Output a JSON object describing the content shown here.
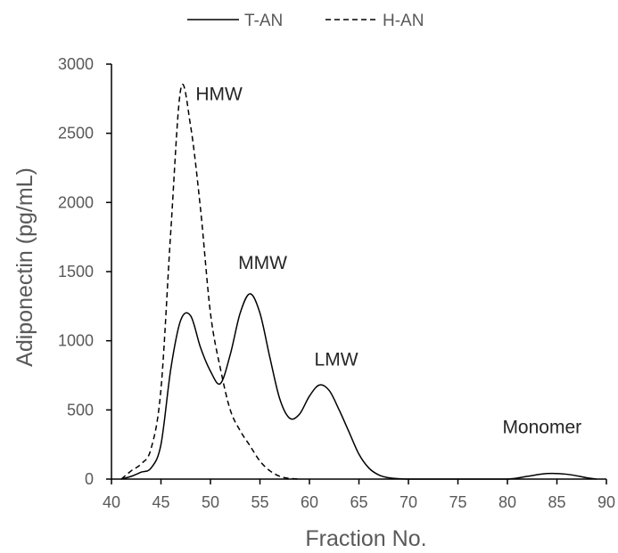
{
  "chart_data": {
    "type": "line",
    "title": "",
    "xlabel": "Fraction No.",
    "ylabel": "Adiponectin (pg/mL)",
    "xlim": [
      40,
      90
    ],
    "ylim": [
      0,
      3000
    ],
    "x_ticks": [
      40,
      45,
      50,
      55,
      60,
      65,
      70,
      75,
      80,
      85,
      90
    ],
    "y_ticks": [
      0,
      500,
      1000,
      1500,
      2000,
      2500,
      3000
    ],
    "grid": false,
    "legend_position": "top",
    "series": [
      {
        "name": "T-AN",
        "style": "solid",
        "color": "#000000",
        "x": [
          41,
          42,
          43,
          44,
          45,
          46,
          47,
          48,
          49,
          50,
          51,
          52,
          53,
          54,
          55,
          56,
          57,
          58,
          59,
          60,
          61,
          62,
          63,
          64,
          65,
          66,
          67,
          68,
          70,
          75,
          80,
          82,
          84,
          86,
          88,
          89
        ],
        "y": [
          0,
          20,
          50,
          80,
          250,
          800,
          1150,
          1180,
          950,
          780,
          690,
          900,
          1200,
          1340,
          1200,
          880,
          580,
          440,
          470,
          600,
          680,
          640,
          500,
          340,
          180,
          80,
          30,
          10,
          0,
          0,
          0,
          20,
          40,
          35,
          10,
          0
        ]
      },
      {
        "name": "H-AN",
        "style": "dashed",
        "color": "#000000",
        "x": [
          41,
          42,
          43,
          44,
          45,
          46,
          47,
          48,
          49,
          50,
          51,
          52,
          53,
          54,
          55,
          56,
          57,
          58,
          59
        ],
        "y": [
          0,
          60,
          110,
          220,
          650,
          1800,
          2820,
          2550,
          1950,
          1200,
          800,
          500,
          350,
          240,
          130,
          60,
          20,
          5,
          0
        ]
      }
    ],
    "annotations": [
      {
        "text": "HMW",
        "x": 48.5,
        "y": 2740
      },
      {
        "text": "MMW",
        "x": 52.8,
        "y": 1520
      },
      {
        "text": "LMW",
        "x": 60.5,
        "y": 820
      },
      {
        "text": "Monomer",
        "x": 79.5,
        "y": 330
      }
    ]
  }
}
